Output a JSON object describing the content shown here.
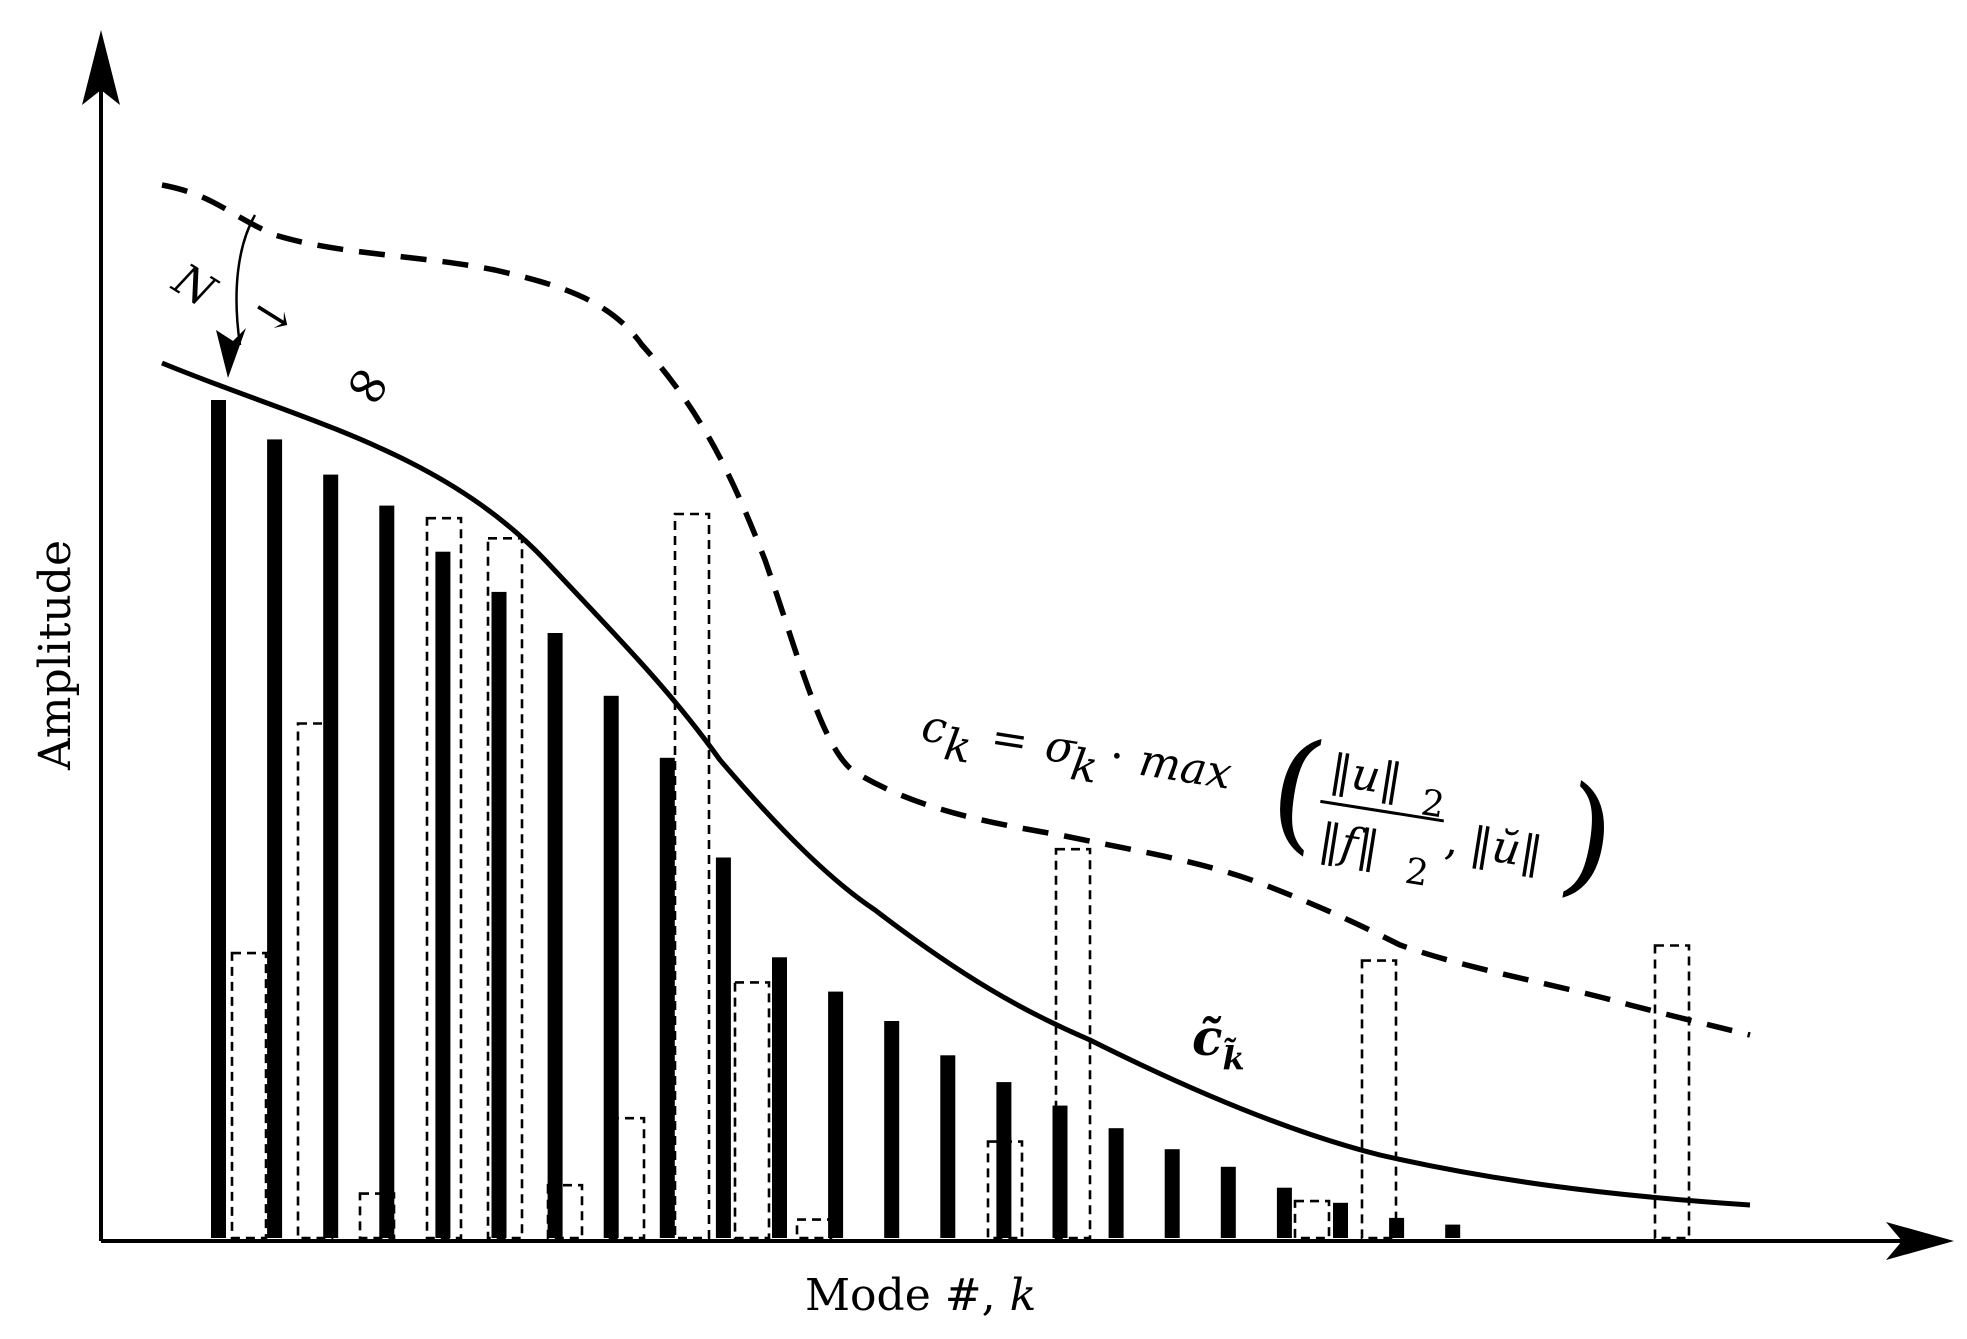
{
  "chart_data": {
    "type": "bar",
    "xlabel_text": "Mode #, ",
    "xlabel_var": "k",
    "ylabel": "Amplitude",
    "grid": false,
    "series": [
      {
        "style": "solid-black-bars",
        "values": [
          100,
          95.3,
          91.1,
          87.4,
          81.9,
          77.1,
          72.2,
          64.7,
          57.3,
          45.4,
          33.5,
          29.4,
          25.9,
          21.8,
          18.6,
          15.8,
          13.1,
          10.6,
          8.5,
          6.0,
          4.2,
          2.4,
          1.6
        ]
      },
      {
        "style": "dashed-outline-bars",
        "values": [
          34.0,
          61.4,
          5.3,
          85.9,
          83.5,
          6.3,
          14.3,
          86.4,
          30.5,
          2.2,
          11.5,
          46.4,
          4.4,
          33.1,
          34.9
        ]
      }
    ],
    "curves": [
      {
        "style": "solid",
        "label": "c̃",
        "label_subscript": "k̃"
      },
      {
        "style": "dashed",
        "label": "c_k = σ_k · max(‖u‖₂/‖f‖₂, ‖ŭ‖)"
      }
    ],
    "annotations": {
      "limit": {
        "n": "N",
        "arrow": "→",
        "infinity": "∞"
      },
      "formula": {
        "c": "c",
        "k": "k",
        "eq": "=",
        "sigma": "σ",
        "dot": "·",
        "max": "max",
        "num_u": "‖u‖",
        "two": "2",
        "den_f": "‖f‖",
        "comma": ",",
        "ubreve": "‖ŭ‖",
        "lparen": "(",
        "rparen": ")"
      }
    }
  }
}
